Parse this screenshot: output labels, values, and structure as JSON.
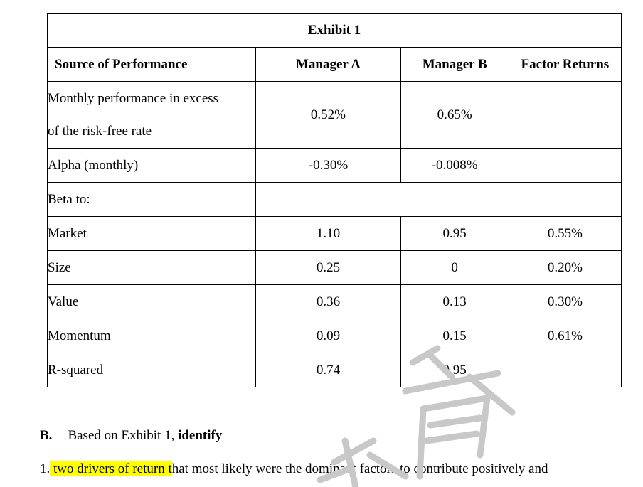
{
  "exhibit": {
    "title": "Exhibit 1",
    "headers": [
      "Source of Performance",
      "Manager A",
      "Manager B",
      "Factor Returns"
    ],
    "rows": {
      "excess": {
        "label_line1": "Monthly performance in excess",
        "label_line2": "of the risk-free rate",
        "a": "0.52%",
        "b": "0.65%",
        "f": ""
      },
      "alpha": {
        "label": "Alpha (monthly)",
        "a": "-0.30%",
        "b": "-0.008%",
        "f": ""
      },
      "beta_to": {
        "label": "Beta to:"
      },
      "market": {
        "label": "Market",
        "a": "1.10",
        "b": "0.95",
        "f": "0.55%"
      },
      "size": {
        "label": "Size",
        "a": "0.25",
        "b": "0",
        "f": "0.20%"
      },
      "value": {
        "label": "Value",
        "a": "0.36",
        "b": "0.13",
        "f": "0.30%"
      },
      "momentum": {
        "label": "Momentum",
        "a": "0.09",
        "b": "0.15",
        "f": "0.61%"
      },
      "rsq": {
        "label": "R-squared",
        "a": "0.74",
        "b": "0.95",
        "f": ""
      }
    }
  },
  "question": {
    "letter": "B.",
    "text": "Based on Exhibit 1, ",
    "bold": "identify"
  },
  "item1": {
    "number": "1.",
    "highlight": " two drivers of return t",
    "rest": "hat most likely were the dominant factors to contribute positively and"
  },
  "colors": {
    "highlight": "#ffff00",
    "watermark": "#c8c8c8"
  }
}
